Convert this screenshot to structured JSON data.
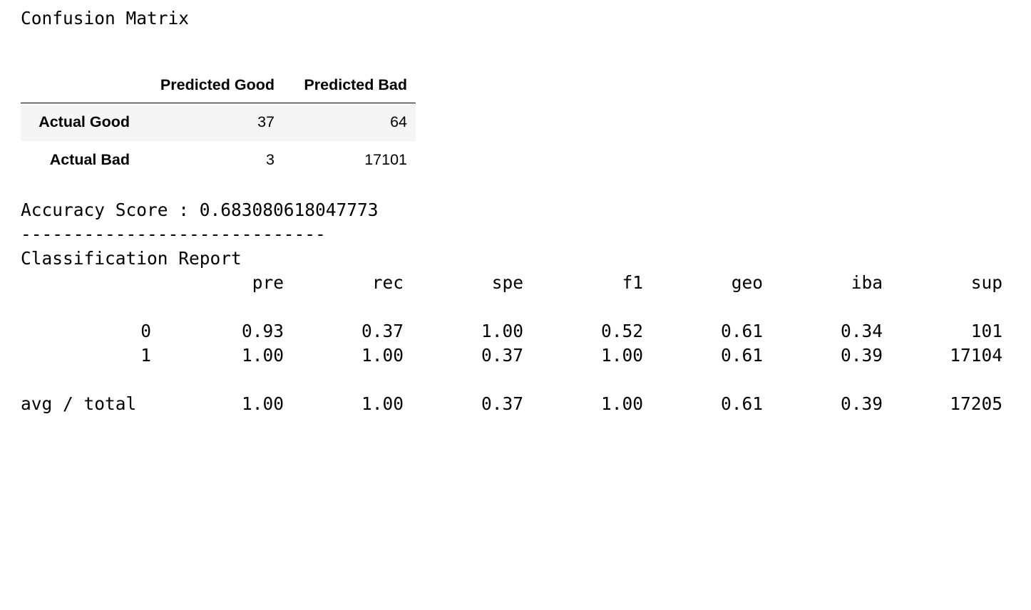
{
  "confusion_matrix": {
    "title": "Confusion Matrix",
    "columns": [
      "Predicted Good",
      "Predicted Bad"
    ],
    "rows": [
      {
        "label": "Actual Good",
        "values": [
          "37",
          "64"
        ]
      },
      {
        "label": "Actual Bad",
        "values": [
          "3",
          "17101"
        ]
      }
    ]
  },
  "accuracy": {
    "line": "Accuracy Score : 0.683080618047773"
  },
  "divider": "-----------------------------",
  "classification_report": {
    "title": "Classification Report",
    "headers": [
      "pre",
      "rec",
      "spe",
      "f1",
      "geo",
      "iba",
      "sup"
    ],
    "rows": [
      {
        "label": "0",
        "values": [
          "0.93",
          "0.37",
          "1.00",
          "0.52",
          "0.61",
          "0.34",
          "101"
        ]
      },
      {
        "label": "1",
        "values": [
          "1.00",
          "1.00",
          "0.37",
          "1.00",
          "0.61",
          "0.39",
          "17104"
        ]
      },
      {
        "label": "avg / total",
        "values": [
          "1.00",
          "1.00",
          "0.37",
          "1.00",
          "0.61",
          "0.39",
          "17205"
        ]
      }
    ]
  }
}
